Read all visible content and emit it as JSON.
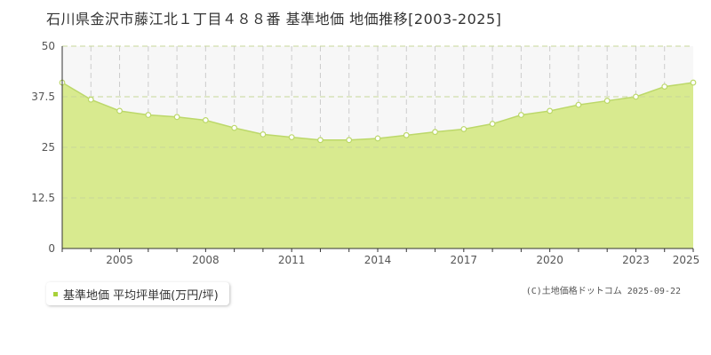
{
  "title": "石川県金沢市藤江北１丁目４８８番 基準地価 地価推移[2003-2025]",
  "legend": {
    "label": "基準地価 平均坪単価(万円/坪)"
  },
  "credit": "(C)土地価格ドットコム 2025-09-22",
  "colors": {
    "area_fill": "#d8ea8f",
    "line": "#bcd86a",
    "point_fill": "#ffffff",
    "point_stroke": "#bcd86a",
    "grid": "#cccccc",
    "upper_band": "#f7f7f7",
    "legend_swatch": "#a8d13a"
  },
  "chart_data": {
    "type": "area",
    "title": "石川県金沢市藤江北１丁目４８８番 基準地価 地価推移[2003-2025]",
    "xlabel": "",
    "ylabel": "",
    "x": [
      2003,
      2004,
      2005,
      2006,
      2007,
      2008,
      2009,
      2010,
      2011,
      2012,
      2013,
      2014,
      2015,
      2016,
      2017,
      2018,
      2019,
      2020,
      2021,
      2022,
      2023,
      2024,
      2025
    ],
    "series": [
      {
        "name": "基準地価 平均坪単価(万円/坪)",
        "values": [
          41.0,
          36.8,
          34.0,
          33.0,
          32.5,
          31.7,
          29.8,
          28.2,
          27.5,
          26.8,
          26.8,
          27.2,
          28.0,
          28.8,
          29.5,
          30.8,
          33.0,
          34.0,
          35.5,
          36.5,
          37.5,
          40.0,
          41.0
        ]
      }
    ],
    "xlim": [
      2003,
      2025
    ],
    "ylim": [
      0,
      50
    ],
    "x_ticks": [
      2005,
      2008,
      2011,
      2014,
      2017,
      2020,
      2023,
      2025
    ],
    "x_tick_labels": [
      "2005",
      "2008",
      "2011",
      "2014",
      "2017",
      "2020",
      "2023",
      "2025"
    ],
    "y_ticks": [
      0,
      12.5,
      25,
      37.5,
      50
    ],
    "y_tick_labels": [
      "0",
      "12.5",
      "25",
      "37.5",
      "50"
    ],
    "grid": true,
    "legend_position": "bottom-left"
  }
}
